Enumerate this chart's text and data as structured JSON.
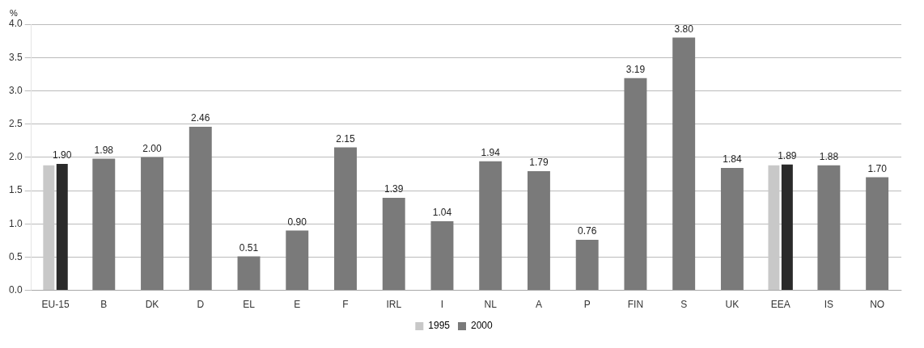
{
  "chart_data": {
    "type": "bar",
    "ylabel": "%",
    "categories": [
      "EU-15",
      "B",
      "DK",
      "D",
      "EL",
      "E",
      "F",
      "IRL",
      "I",
      "NL",
      "A",
      "P",
      "FIN",
      "S",
      "UK",
      "EEA",
      "IS",
      "NO"
    ],
    "series": [
      {
        "name": "1995",
        "color": "#c8c8c8",
        "values": [
          1.88,
          null,
          null,
          null,
          null,
          null,
          null,
          null,
          null,
          null,
          null,
          null,
          null,
          null,
          null,
          1.88,
          null,
          null
        ]
      },
      {
        "name": "2000",
        "color": "#7a7a7a",
        "colors": [
          "#2a2a2a",
          "#7a7a7a",
          "#7a7a7a",
          "#7a7a7a",
          "#7a7a7a",
          "#7a7a7a",
          "#7a7a7a",
          "#7a7a7a",
          "#7a7a7a",
          "#7a7a7a",
          "#7a7a7a",
          "#7a7a7a",
          "#7a7a7a",
          "#7a7a7a",
          "#7a7a7a",
          "#2a2a2a",
          "#7a7a7a",
          "#7a7a7a"
        ],
        "values": [
          1.9,
          1.98,
          2.0,
          2.46,
          0.51,
          0.9,
          2.15,
          1.39,
          1.04,
          1.94,
          1.79,
          0.76,
          3.19,
          3.8,
          1.84,
          1.89,
          1.88,
          1.7
        ],
        "value_labels": [
          "1.90",
          "1.98",
          "2.00",
          "2.46",
          "0.51",
          "0.90",
          "2.15",
          "1.39",
          "1.04",
          "1.94",
          "1.79",
          "0.76",
          "3.19",
          "3.80",
          "1.84",
          "1.89",
          "1.88",
          "1.70"
        ]
      }
    ],
    "ylim": [
      0,
      4
    ],
    "yticks": [
      {
        "value": 0,
        "label": "0.0"
      },
      {
        "value": 0.5,
        "label": "0.5"
      },
      {
        "value": 1,
        "label": "1.0"
      },
      {
        "value": 1.5,
        "label": "1.5"
      },
      {
        "value": 2,
        "label": "2.0"
      },
      {
        "value": 2.5,
        "label": "2.5"
      },
      {
        "value": 3,
        "label": "3.0"
      },
      {
        "value": 3.5,
        "label": "3.5"
      },
      {
        "value": 4,
        "label": "4.0"
      }
    ],
    "grid": "y",
    "legend": "bottom"
  }
}
